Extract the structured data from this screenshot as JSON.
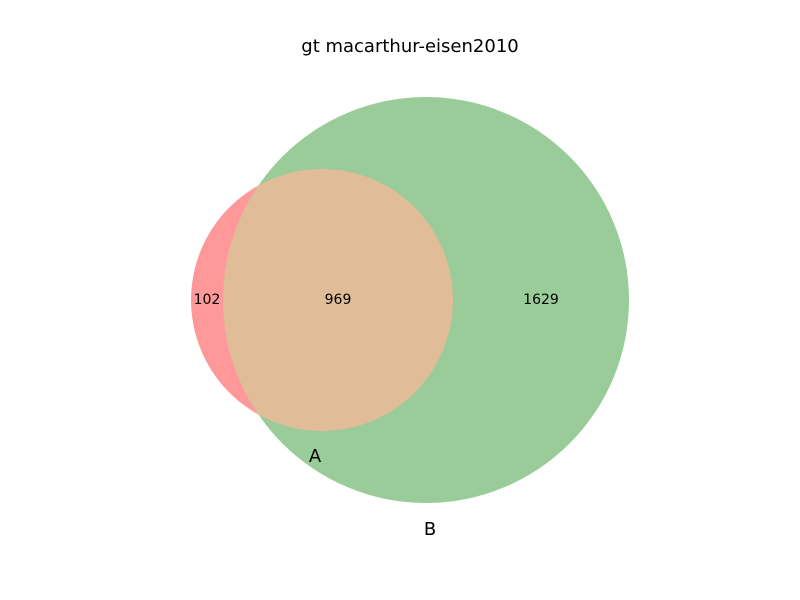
{
  "title": "gt macarthur-eisen2010",
  "sets": [
    {
      "label": "A",
      "color": "#ff9999"
    },
    {
      "label": "B",
      "color": "#99cc99"
    }
  ],
  "intersection_color": "#e0bc99",
  "regions": {
    "a_only": "102",
    "both": "969",
    "b_only": "1629"
  }
}
